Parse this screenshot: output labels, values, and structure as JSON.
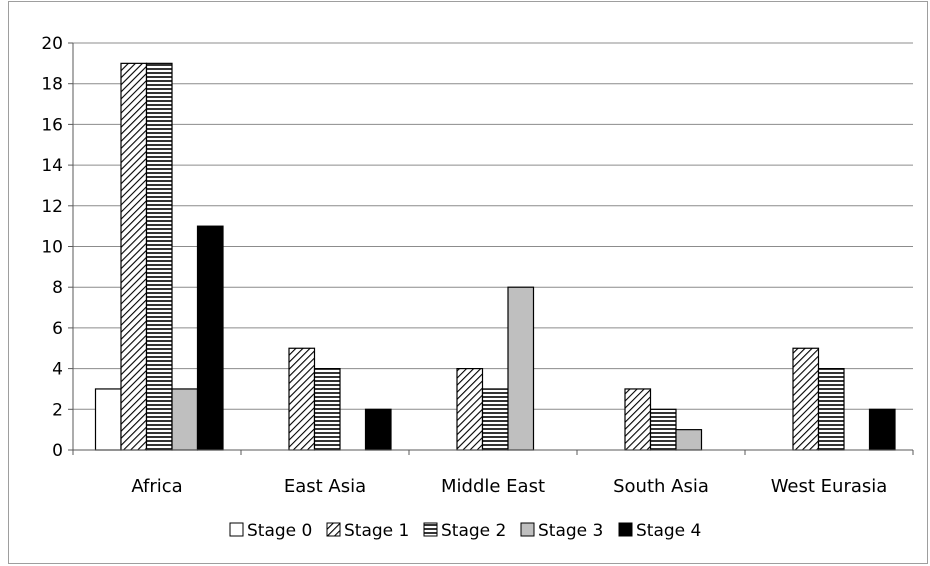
{
  "chart_data": {
    "type": "bar",
    "title": "",
    "xlabel": "",
    "ylabel": "",
    "categories": [
      "Africa",
      "East Asia",
      "Middle East",
      "South Asia",
      "West Eurasia"
    ],
    "series": [
      {
        "name": "Stage 0",
        "values": [
          3,
          0,
          0,
          0,
          0
        ],
        "pattern": "white"
      },
      {
        "name": "Stage 1",
        "values": [
          19,
          5,
          4,
          3,
          5
        ],
        "pattern": "diagonal-hatch"
      },
      {
        "name": "Stage 2",
        "values": [
          19,
          4,
          3,
          2,
          4
        ],
        "pattern": "horizontal-hatch"
      },
      {
        "name": "Stage 3",
        "values": [
          3,
          0,
          8,
          1,
          0
        ],
        "pattern": "light-gray"
      },
      {
        "name": "Stage 4",
        "values": [
          11,
          2,
          0,
          0,
          2
        ],
        "pattern": "black"
      }
    ],
    "ylim": [
      0,
      20
    ],
    "y_ticks": [
      0,
      2,
      4,
      6,
      8,
      10,
      12,
      14,
      16,
      18,
      20
    ],
    "grid": true,
    "legend_position": "bottom",
    "colors": {
      "stage0": "#ffffff",
      "stage1_line": "#000000",
      "stage2_line": "#000000",
      "stage3": "#bfbfbf",
      "stage4": "#000000",
      "gridline": "#8c8c8c",
      "frame": "#9e9e9e"
    }
  }
}
